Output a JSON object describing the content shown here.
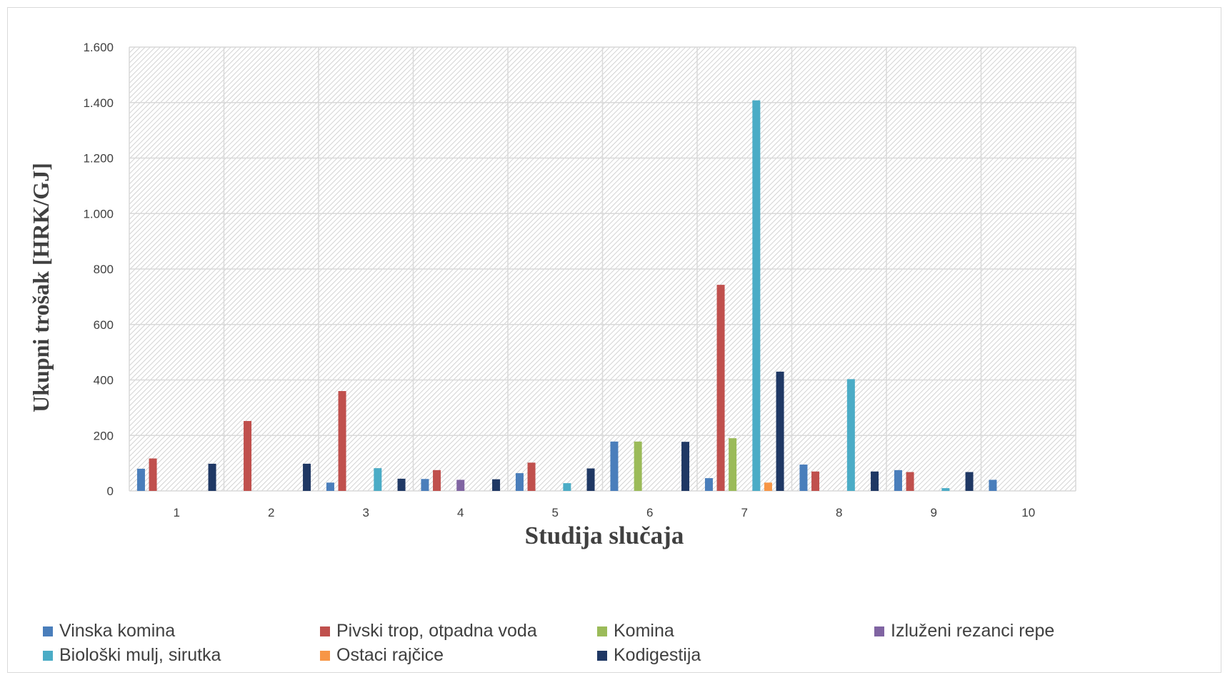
{
  "chart_data": {
    "type": "bar",
    "title": "",
    "xlabel": "Studija slučaja",
    "ylabel": "Ukupni trošak [HRK/GJ]",
    "ylim": [
      0,
      1600
    ],
    "yticks": [
      0,
      200,
      400,
      600,
      800,
      1000,
      1200,
      1400,
      1600
    ],
    "ytick_labels": [
      "0",
      "200",
      "400",
      "600",
      "800",
      "1.000",
      "1.200",
      "1.400",
      "1.600"
    ],
    "categories": [
      "1",
      "2",
      "3",
      "4",
      "5",
      "6",
      "7",
      "8",
      "9",
      "10"
    ],
    "grid": true,
    "legend_position": "bottom",
    "series": [
      {
        "name": "Vinska komina",
        "color": "#4a7ebb",
        "values": [
          80,
          0,
          30,
          43,
          64,
          178,
          46,
          95,
          75,
          40
        ]
      },
      {
        "name": "Pivski trop, otpadna voda",
        "color": "#c0504d",
        "values": [
          117,
          252,
          360,
          75,
          102,
          0,
          743,
          70,
          68,
          0
        ]
      },
      {
        "name": "Komina",
        "color": "#9bbb59",
        "values": [
          0,
          0,
          0,
          0,
          0,
          178,
          190,
          0,
          0,
          0
        ]
      },
      {
        "name": "Izluženi rezanci repe",
        "color": "#8064a2",
        "values": [
          0,
          0,
          0,
          40,
          0,
          0,
          0,
          0,
          0,
          0
        ]
      },
      {
        "name": "Biološki mulj, sirutka",
        "color": "#4bacc6",
        "values": [
          0,
          0,
          82,
          0,
          28,
          0,
          1408,
          403,
          10,
          0
        ]
      },
      {
        "name": "Ostaci rajčice",
        "color": "#f79646",
        "values": [
          0,
          0,
          0,
          0,
          0,
          0,
          30,
          0,
          0,
          0
        ]
      },
      {
        "name": "Kodigestija",
        "color": "#1f3864",
        "values": [
          98,
          98,
          44,
          42,
          81,
          177,
          430,
          70,
          68,
          0
        ]
      }
    ]
  }
}
